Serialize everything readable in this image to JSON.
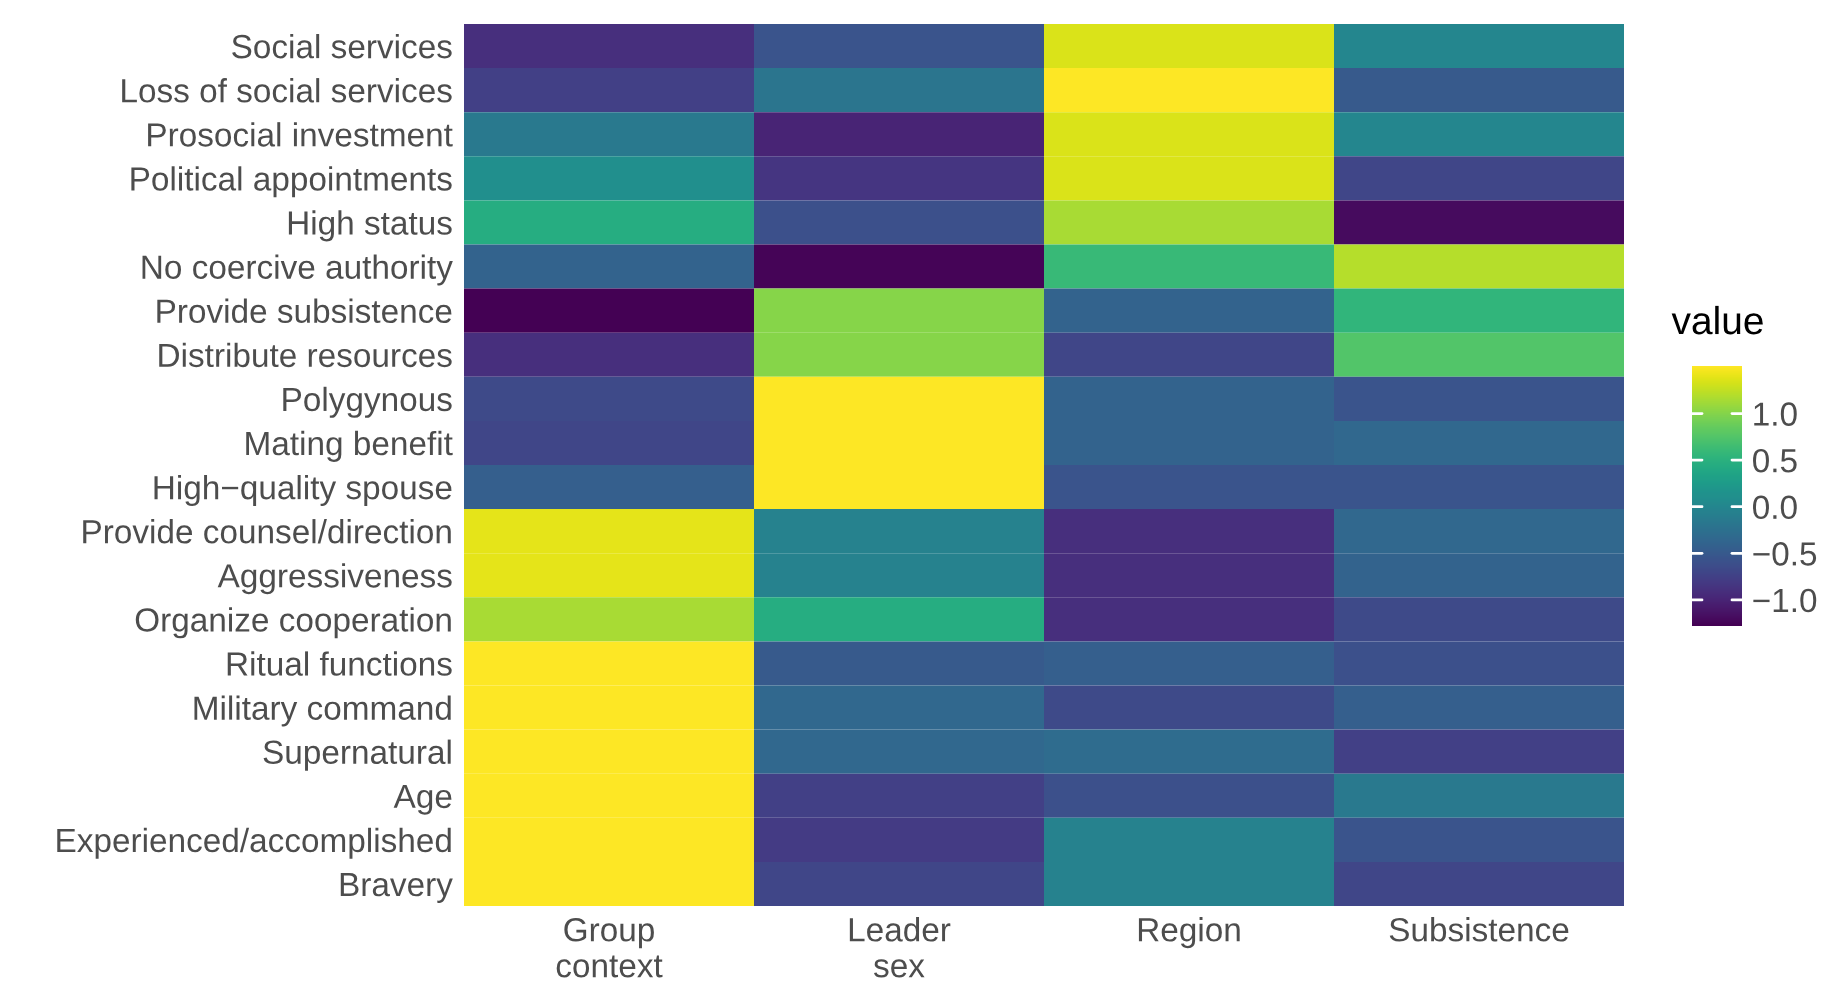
{
  "chart_data": {
    "type": "heatmap",
    "clabel": "value",
    "categories": [
      "Group\ncontext",
      "Leader\nsex",
      "Region",
      "Subsistence"
    ],
    "y_categories": [
      "Social services",
      "Loss of social services",
      "Prosocial investment",
      "Political appointments",
      "High status",
      "No coercive authority",
      "Provide subsistence",
      "Distribute resources",
      "Polygynous",
      "Mating benefit",
      "High−quality spouse",
      "Provide counsel/direction",
      "Aggressiveness",
      "Organize cooperation",
      "Ritual functions",
      "Military command",
      "Supernatural",
      "Age",
      "Experienced/accomplished",
      "Bravery"
    ],
    "cells": [
      [
        -0.9,
        -0.55,
        1.35,
        0.0
      ],
      [
        -0.75,
        -0.2,
        1.5,
        -0.5
      ],
      [
        -0.15,
        -1.0,
        1.35,
        0.0
      ],
      [
        0.1,
        -0.85,
        1.35,
        -0.7
      ],
      [
        0.45,
        -0.6,
        1.15,
        -1.2
      ],
      [
        -0.4,
        -1.25,
        0.6,
        1.2
      ],
      [
        -1.28,
        1.0,
        -0.4,
        0.55
      ],
      [
        -0.9,
        1.0,
        -0.7,
        0.75
      ],
      [
        -0.65,
        1.5,
        -0.4,
        -0.55
      ],
      [
        -0.7,
        1.5,
        -0.4,
        -0.35
      ],
      [
        -0.45,
        1.5,
        -0.55,
        -0.55
      ],
      [
        1.4,
        -0.05,
        -0.9,
        -0.35
      ],
      [
        1.4,
        -0.05,
        -0.9,
        -0.4
      ],
      [
        1.15,
        0.45,
        -0.9,
        -0.65
      ],
      [
        1.5,
        -0.5,
        -0.45,
        -0.6
      ],
      [
        1.5,
        -0.35,
        -0.65,
        -0.45
      ],
      [
        1.5,
        -0.35,
        -0.3,
        -0.75
      ],
      [
        1.5,
        -0.75,
        -0.6,
        -0.15
      ],
      [
        1.5,
        -0.8,
        -0.05,
        -0.55
      ],
      [
        1.5,
        -0.7,
        -0.05,
        -0.7
      ]
    ],
    "clim": [
      -1.28,
      1.51
    ],
    "cticks": [
      {
        "value": 1.0,
        "label": "1.0"
      },
      {
        "value": 0.5,
        "label": "0.5"
      },
      {
        "value": 0.0,
        "label": "0.0"
      },
      {
        "value": -0.5,
        "label": "−0.5"
      },
      {
        "value": -1.0,
        "label": "−1.0"
      }
    ]
  }
}
